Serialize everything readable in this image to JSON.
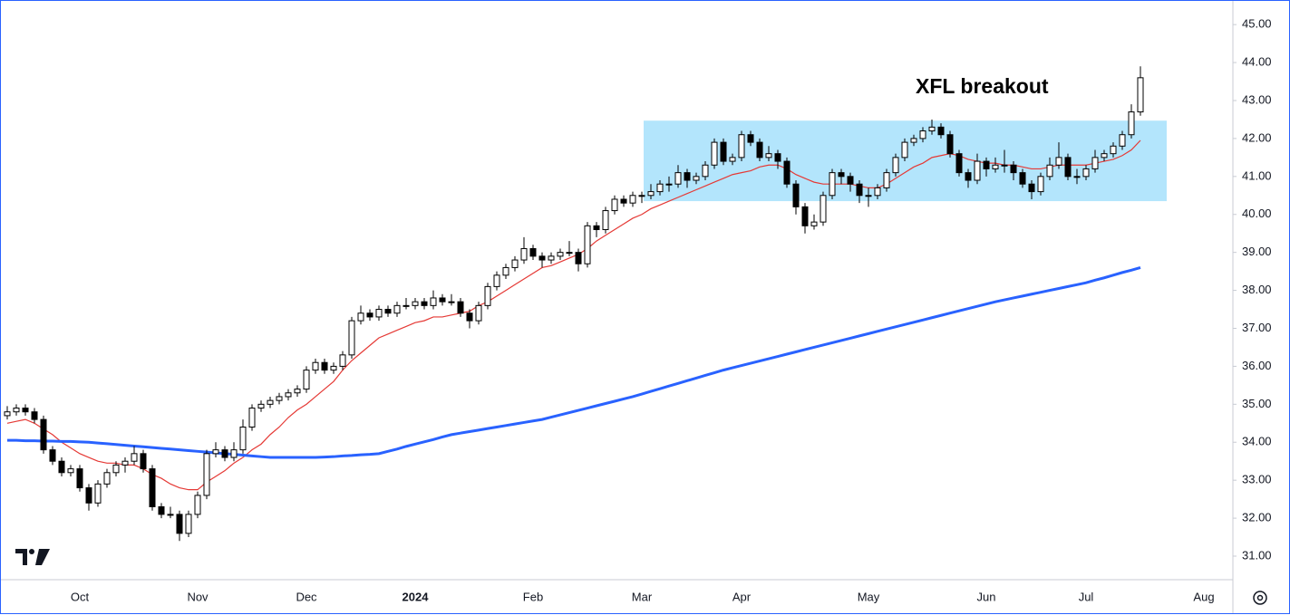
{
  "chart_data": {
    "type": "candlestick",
    "annotation": "XFL breakout",
    "categories": [
      null,
      null,
      null,
      null,
      null,
      null,
      null,
      null,
      "Oct",
      null,
      null,
      null,
      null,
      null,
      null,
      null,
      null,
      null,
      null,
      null,
      null,
      "Nov",
      null,
      null,
      null,
      null,
      null,
      null,
      null,
      null,
      null,
      null,
      null,
      "Dec",
      null,
      null,
      null,
      null,
      null,
      null,
      null,
      null,
      null,
      null,
      null,
      "2024",
      null,
      null,
      null,
      null,
      null,
      null,
      null,
      null,
      null,
      null,
      null,
      null,
      "Feb",
      null,
      null,
      null,
      null,
      null,
      null,
      null,
      null,
      null,
      null,
      null,
      "Mar",
      null,
      null,
      null,
      null,
      null,
      null,
      null,
      null,
      null,
      null,
      "Apr",
      null,
      null,
      null,
      null,
      null,
      null,
      null,
      null,
      null,
      null,
      null,
      null,
      null,
      "May",
      null,
      null,
      null,
      null,
      null,
      null,
      null,
      null,
      null,
      null,
      null,
      null,
      "Jun",
      null,
      null,
      null,
      null,
      null,
      null,
      null,
      null,
      null,
      null,
      "Jul",
      null,
      null,
      null,
      null,
      null,
      null,
      null,
      null,
      null,
      null,
      null,
      null,
      "Aug",
      null,
      null,
      null
    ],
    "candles": [
      [
        34.7,
        34.95,
        34.6,
        34.8
      ],
      [
        34.8,
        35.0,
        34.7,
        34.9
      ],
      [
        34.9,
        35.0,
        34.7,
        34.8
      ],
      [
        34.8,
        34.9,
        34.5,
        34.6
      ],
      [
        34.6,
        34.7,
        33.7,
        33.8
      ],
      [
        33.8,
        33.9,
        33.4,
        33.5
      ],
      [
        33.5,
        33.6,
        33.1,
        33.2
      ],
      [
        33.2,
        33.4,
        33.1,
        33.3
      ],
      [
        33.3,
        33.4,
        32.7,
        32.8
      ],
      [
        32.8,
        32.9,
        32.2,
        32.4
      ],
      [
        32.4,
        33.0,
        32.3,
        32.9
      ],
      [
        32.9,
        33.3,
        32.8,
        33.2
      ],
      [
        33.2,
        33.5,
        33.1,
        33.4
      ],
      [
        33.4,
        33.6,
        33.2,
        33.5
      ],
      [
        33.5,
        33.9,
        33.4,
        33.7
      ],
      [
        33.7,
        33.8,
        33.2,
        33.3
      ],
      [
        33.3,
        33.4,
        32.2,
        32.3
      ],
      [
        32.3,
        32.4,
        32.0,
        32.1
      ],
      [
        32.1,
        32.3,
        32.0,
        32.1
      ],
      [
        32.1,
        32.2,
        31.4,
        31.6
      ],
      [
        31.6,
        32.2,
        31.5,
        32.1
      ],
      [
        32.1,
        32.7,
        32.0,
        32.6
      ],
      [
        32.6,
        33.8,
        32.5,
        33.7
      ],
      [
        33.7,
        34.0,
        33.6,
        33.8
      ],
      [
        33.8,
        33.9,
        33.5,
        33.6
      ],
      [
        33.6,
        34.0,
        33.5,
        33.8
      ],
      [
        33.8,
        34.6,
        33.7,
        34.4
      ],
      [
        34.4,
        35.0,
        34.3,
        34.9
      ],
      [
        34.9,
        35.1,
        34.8,
        35.0
      ],
      [
        35.0,
        35.2,
        34.9,
        35.1
      ],
      [
        35.1,
        35.3,
        35.0,
        35.2
      ],
      [
        35.2,
        35.4,
        35.1,
        35.3
      ],
      [
        35.3,
        35.5,
        35.2,
        35.4
      ],
      [
        35.4,
        36.0,
        35.3,
        35.9
      ],
      [
        35.9,
        36.2,
        35.8,
        36.1
      ],
      [
        36.1,
        36.2,
        35.8,
        35.9
      ],
      [
        35.9,
        36.1,
        35.8,
        36.0
      ],
      [
        36.0,
        36.4,
        35.9,
        36.3
      ],
      [
        36.3,
        37.3,
        36.2,
        37.2
      ],
      [
        37.2,
        37.6,
        37.1,
        37.4
      ],
      [
        37.4,
        37.5,
        37.2,
        37.3
      ],
      [
        37.3,
        37.6,
        37.2,
        37.5
      ],
      [
        37.5,
        37.6,
        37.3,
        37.4
      ],
      [
        37.4,
        37.7,
        37.3,
        37.6
      ],
      [
        37.6,
        37.8,
        37.5,
        37.6
      ],
      [
        37.6,
        37.8,
        37.5,
        37.7
      ],
      [
        37.7,
        37.8,
        37.5,
        37.6
      ],
      [
        37.6,
        38.0,
        37.5,
        37.8
      ],
      [
        37.8,
        37.9,
        37.6,
        37.7
      ],
      [
        37.7,
        37.9,
        37.6,
        37.7
      ],
      [
        37.7,
        37.8,
        37.3,
        37.4
      ],
      [
        37.4,
        37.5,
        37.0,
        37.2
      ],
      [
        37.2,
        37.7,
        37.1,
        37.6
      ],
      [
        37.6,
        38.2,
        37.5,
        38.1
      ],
      [
        38.1,
        38.5,
        38.0,
        38.4
      ],
      [
        38.4,
        38.7,
        38.3,
        38.6
      ],
      [
        38.6,
        38.9,
        38.5,
        38.8
      ],
      [
        38.8,
        39.4,
        38.7,
        39.1
      ],
      [
        39.1,
        39.2,
        38.8,
        38.9
      ],
      [
        38.9,
        39.0,
        38.6,
        38.8
      ],
      [
        38.8,
        39.0,
        38.7,
        38.9
      ],
      [
        38.9,
        39.1,
        38.8,
        39.0
      ],
      [
        39.0,
        39.3,
        38.9,
        39.0
      ],
      [
        39.0,
        39.1,
        38.5,
        38.7
      ],
      [
        38.7,
        39.8,
        38.6,
        39.7
      ],
      [
        39.7,
        39.8,
        39.4,
        39.6
      ],
      [
        39.6,
        40.2,
        39.5,
        40.1
      ],
      [
        40.1,
        40.5,
        40.0,
        40.4
      ],
      [
        40.4,
        40.5,
        40.2,
        40.3
      ],
      [
        40.3,
        40.6,
        40.2,
        40.5
      ],
      [
        40.5,
        40.6,
        40.3,
        40.5
      ],
      [
        40.5,
        40.8,
        40.4,
        40.6
      ],
      [
        40.6,
        40.9,
        40.5,
        40.8
      ],
      [
        40.8,
        41.0,
        40.6,
        40.8
      ],
      [
        40.8,
        41.3,
        40.7,
        41.1
      ],
      [
        41.1,
        41.2,
        40.7,
        40.9
      ],
      [
        40.9,
        41.1,
        40.8,
        41.0
      ],
      [
        41.0,
        41.4,
        40.9,
        41.3
      ],
      [
        41.3,
        42.0,
        41.2,
        41.9
      ],
      [
        41.9,
        42.0,
        41.3,
        41.4
      ],
      [
        41.4,
        41.6,
        41.3,
        41.5
      ],
      [
        41.5,
        42.2,
        41.4,
        42.1
      ],
      [
        42.1,
        42.2,
        41.8,
        41.9
      ],
      [
        41.9,
        42.0,
        41.4,
        41.5
      ],
      [
        41.5,
        41.8,
        41.4,
        41.6
      ],
      [
        41.6,
        41.7,
        41.2,
        41.4
      ],
      [
        41.4,
        41.5,
        40.7,
        40.8
      ],
      [
        40.8,
        40.9,
        40.0,
        40.2
      ],
      [
        40.2,
        40.3,
        39.5,
        39.7
      ],
      [
        39.7,
        40.0,
        39.6,
        39.8
      ],
      [
        39.8,
        40.6,
        39.7,
        40.5
      ],
      [
        40.5,
        41.2,
        40.4,
        41.1
      ],
      [
        41.1,
        41.2,
        40.8,
        41.0
      ],
      [
        41.0,
        41.1,
        40.6,
        40.8
      ],
      [
        40.8,
        40.9,
        40.3,
        40.5
      ],
      [
        40.5,
        40.7,
        40.2,
        40.5
      ],
      [
        40.5,
        40.8,
        40.4,
        40.7
      ],
      [
        40.7,
        41.2,
        40.6,
        41.1
      ],
      [
        41.1,
        41.6,
        41.0,
        41.5
      ],
      [
        41.5,
        42.0,
        41.4,
        41.9
      ],
      [
        41.9,
        42.1,
        41.8,
        42.0
      ],
      [
        42.0,
        42.3,
        41.9,
        42.2
      ],
      [
        42.2,
        42.5,
        42.1,
        42.3
      ],
      [
        42.3,
        42.4,
        42.0,
        42.1
      ],
      [
        42.1,
        42.2,
        41.5,
        41.6
      ],
      [
        41.6,
        41.7,
        41.0,
        41.1
      ],
      [
        41.1,
        41.2,
        40.7,
        40.9
      ],
      [
        40.9,
        41.6,
        40.8,
        41.4
      ],
      [
        41.4,
        41.5,
        41.0,
        41.2
      ],
      [
        41.2,
        41.5,
        41.1,
        41.3
      ],
      [
        41.3,
        41.7,
        41.1,
        41.3
      ],
      [
        41.3,
        41.4,
        40.9,
        41.1
      ],
      [
        41.1,
        41.2,
        40.7,
        40.8
      ],
      [
        40.8,
        40.9,
        40.4,
        40.6
      ],
      [
        40.6,
        41.1,
        40.5,
        41.0
      ],
      [
        41.0,
        41.5,
        40.9,
        41.3
      ],
      [
        41.3,
        41.9,
        41.2,
        41.5
      ],
      [
        41.5,
        41.6,
        40.9,
        41.0
      ],
      [
        41.0,
        41.2,
        40.8,
        41.0
      ],
      [
        41.0,
        41.3,
        40.9,
        41.2
      ],
      [
        41.2,
        41.7,
        41.1,
        41.5
      ],
      [
        41.5,
        41.7,
        41.4,
        41.6
      ],
      [
        41.6,
        41.9,
        41.5,
        41.8
      ],
      [
        41.8,
        42.2,
        41.7,
        42.1
      ],
      [
        42.1,
        42.9,
        42.0,
        42.7
      ],
      [
        42.7,
        43.9,
        42.6,
        43.6
      ],
      null,
      null,
      null,
      null,
      null,
      null,
      null,
      null,
      null,
      null
    ],
    "lines": [
      {
        "color": "#e53935",
        "width": 1.2,
        "values": [
          34.5,
          34.55,
          34.6,
          34.5,
          34.35,
          34.2,
          34.0,
          33.85,
          33.7,
          33.6,
          33.5,
          33.45,
          33.45,
          33.4,
          33.4,
          33.3,
          33.15,
          33.05,
          32.9,
          32.8,
          32.75,
          32.75,
          32.95,
          33.1,
          33.25,
          33.45,
          33.6,
          33.8,
          33.95,
          34.2,
          34.4,
          34.65,
          34.85,
          35.0,
          35.2,
          35.4,
          35.6,
          35.9,
          36.15,
          36.35,
          36.55,
          36.75,
          36.85,
          36.95,
          37.05,
          37.15,
          37.2,
          37.3,
          37.3,
          37.35,
          37.4,
          37.45,
          37.6,
          37.7,
          37.85,
          38.0,
          38.15,
          38.3,
          38.45,
          38.6,
          38.65,
          38.75,
          38.85,
          38.95,
          39.1,
          39.3,
          39.45,
          39.6,
          39.75,
          39.9,
          40.0,
          40.15,
          40.25,
          40.35,
          40.45,
          40.55,
          40.65,
          40.75,
          40.85,
          40.95,
          41.05,
          41.1,
          41.15,
          41.25,
          41.3,
          41.3,
          41.2,
          41.05,
          40.95,
          40.85,
          40.8,
          40.8,
          40.8,
          40.8,
          40.75,
          40.7,
          40.7,
          40.8,
          40.95,
          41.1,
          41.25,
          41.35,
          41.5,
          41.55,
          41.6,
          41.55,
          41.45,
          41.4,
          41.35,
          41.35,
          41.3,
          41.3,
          41.25,
          41.2,
          41.2,
          41.25,
          41.3,
          41.3,
          41.3,
          41.3,
          41.35,
          41.4,
          41.45,
          41.55,
          41.7,
          41.95,
          null,
          null,
          null,
          null,
          null,
          null,
          null,
          null,
          null,
          null
        ]
      },
      {
        "color": "#2962ff",
        "width": 3,
        "values": [
          34.05,
          34.05,
          34.04,
          34.04,
          34.03,
          34.03,
          34.02,
          34.02,
          34.01,
          34.0,
          33.98,
          33.96,
          33.94,
          33.92,
          33.9,
          33.88,
          33.86,
          33.84,
          33.82,
          33.8,
          33.78,
          33.76,
          33.74,
          33.72,
          33.7,
          33.68,
          33.66,
          33.64,
          33.62,
          33.6,
          33.6,
          33.6,
          33.6,
          33.6,
          33.6,
          33.61,
          33.62,
          33.64,
          33.65,
          33.67,
          33.68,
          33.7,
          33.76,
          33.82,
          33.89,
          33.95,
          34.01,
          34.07,
          34.14,
          34.2,
          34.24,
          34.28,
          34.32,
          34.36,
          34.4,
          34.44,
          34.48,
          34.52,
          34.56,
          34.6,
          34.66,
          34.72,
          34.78,
          34.84,
          34.9,
          34.96,
          35.02,
          35.08,
          35.14,
          35.2,
          35.27,
          35.34,
          35.41,
          35.48,
          35.55,
          35.62,
          35.69,
          35.76,
          35.83,
          35.9,
          35.96,
          36.02,
          36.08,
          36.14,
          36.2,
          36.26,
          36.32,
          36.38,
          36.44,
          36.5,
          36.56,
          36.62,
          36.68,
          36.74,
          36.8,
          36.86,
          36.92,
          36.98,
          37.04,
          37.1,
          37.16,
          37.22,
          37.28,
          37.34,
          37.4,
          37.46,
          37.52,
          37.58,
          37.64,
          37.7,
          37.75,
          37.8,
          37.85,
          37.9,
          37.95,
          38.0,
          38.05,
          38.1,
          38.15,
          38.2,
          38.27,
          38.33,
          38.4,
          38.47,
          38.53,
          38.6,
          null,
          null,
          null,
          null,
          null,
          null,
          null,
          null,
          null,
          null
        ]
      }
    ],
    "highlight": {
      "color": "#b3e5fc",
      "range": [
        70.2,
        127.9
      ],
      "ylim": [
        40.35,
        42.47
      ]
    },
    "up_color": "#ffffff",
    "down_color": "#000000",
    "ylim": [
      30.38,
      45.6
    ],
    "yticks": [
      {
        "value": 31,
        "label": "31.00"
      },
      {
        "value": 32,
        "label": "32.00"
      },
      {
        "value": 33,
        "label": "33.00"
      },
      {
        "value": 34,
        "label": "34.00"
      },
      {
        "value": 35,
        "label": "35.00"
      },
      {
        "value": 36,
        "label": "36.00"
      },
      {
        "value": 37,
        "label": "37.00"
      },
      {
        "value": 38,
        "label": "38.00"
      },
      {
        "value": 39,
        "label": "39.00"
      },
      {
        "value": 40,
        "label": "40.00"
      },
      {
        "value": 41,
        "label": "41.00"
      },
      {
        "value": 42,
        "label": "42.00"
      },
      {
        "value": 43,
        "label": "43.00"
      },
      {
        "value": 44,
        "label": "44.00"
      },
      {
        "value": 45,
        "label": "45.00"
      }
    ],
    "grid": false
  }
}
